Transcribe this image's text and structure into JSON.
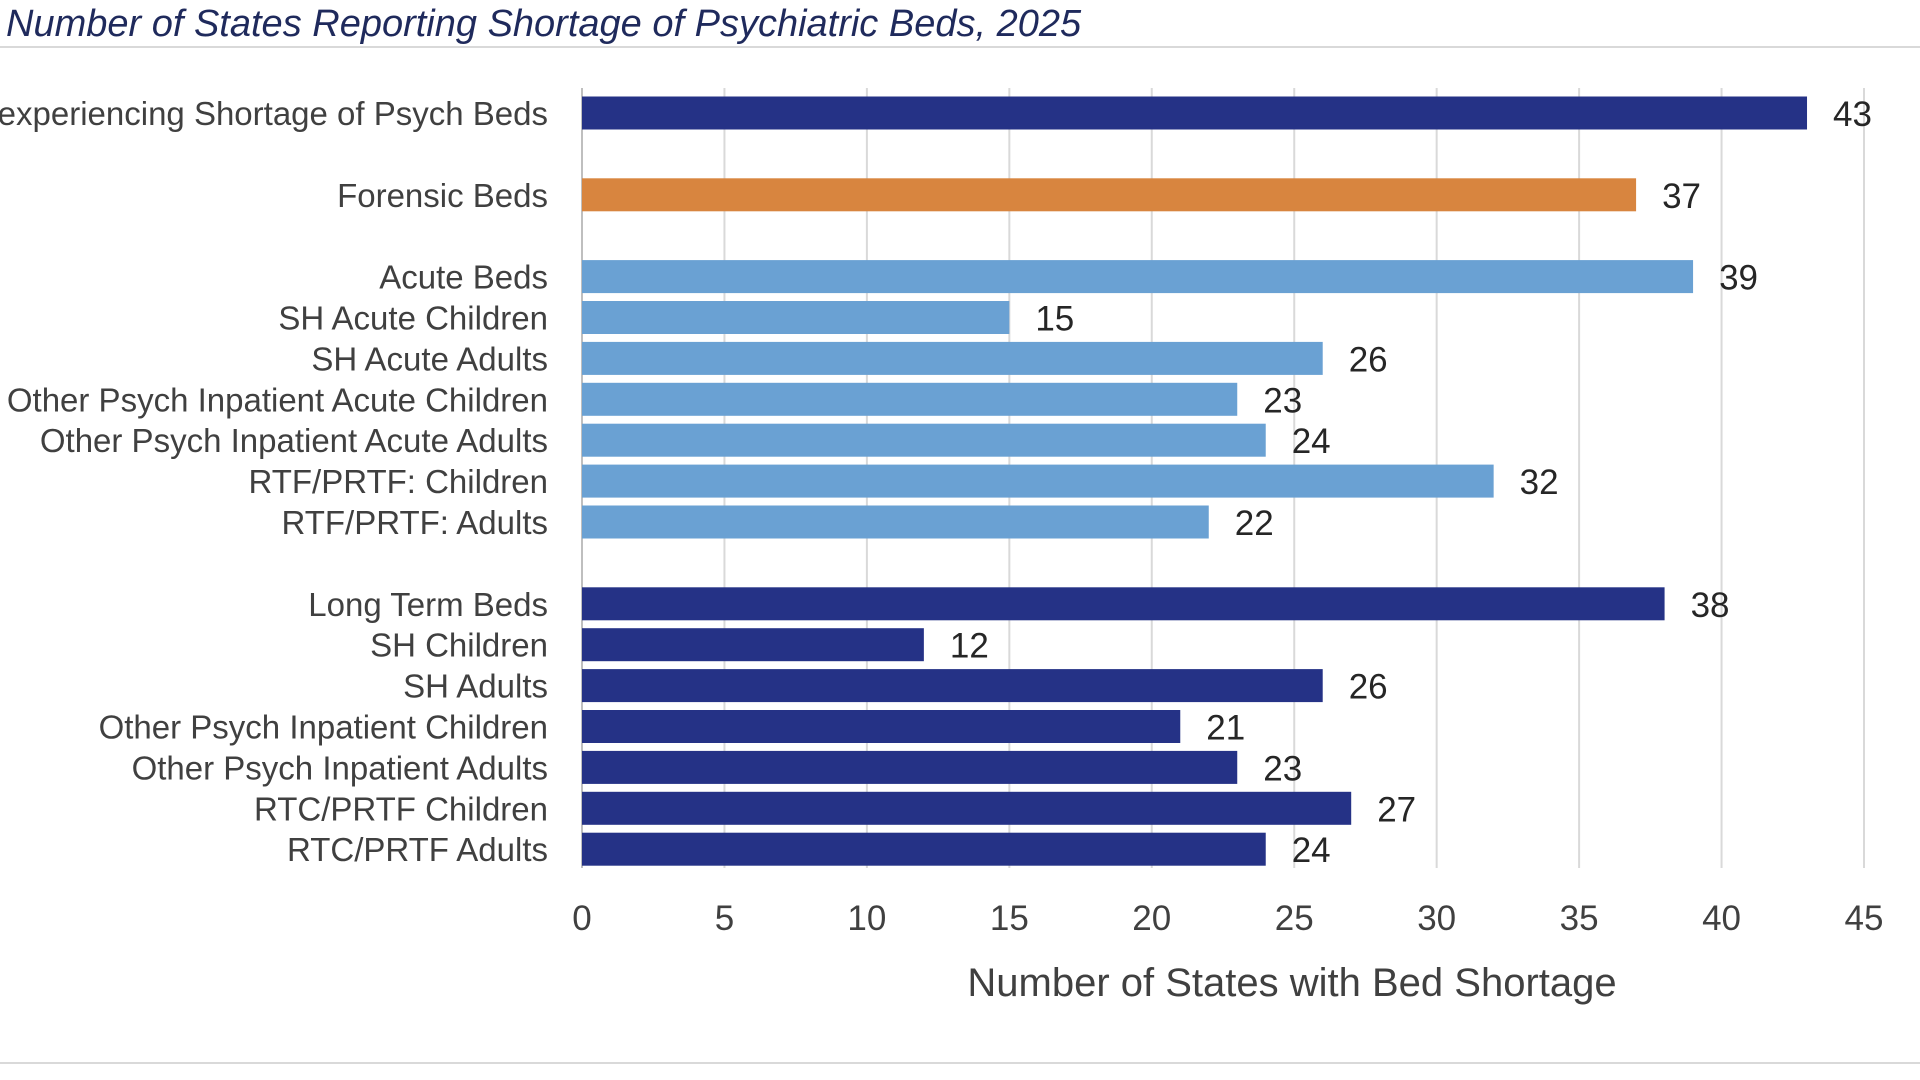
{
  "chart_data": {
    "type": "bar",
    "orientation": "horizontal",
    "title": "Number of States Reporting Shortage of Psychiatric Beds, 2025",
    "xlabel": "Number of States with Bed Shortage",
    "ylabel": "",
    "xlim": [
      0,
      45
    ],
    "xticks": [
      0,
      5,
      10,
      15,
      20,
      25,
      30,
      35,
      40,
      45
    ],
    "grid": "vertical",
    "legend": "none",
    "categories": [
      "experiencing Shortage of Psych Beds",
      "Forensic Beds",
      "Acute Beds",
      "SH Acute Children",
      "SH Acute Adults",
      "Other Psych Inpatient Acute Children",
      "Other Psych Inpatient Acute Adults",
      "RTF/PRTF: Children",
      "RTF/PRTF: Adults",
      "Long Term Beds",
      "SH Children",
      "SH Adults",
      "Other Psych Inpatient Children",
      "Other Psych Inpatient Adults",
      "RTC/PRTF Children",
      "RTC/PRTF Adults"
    ],
    "values": [
      43,
      37,
      39,
      15,
      26,
      23,
      24,
      32,
      22,
      38,
      12,
      26,
      21,
      23,
      27,
      24
    ],
    "groups": [
      0,
      1,
      2,
      2,
      2,
      2,
      2,
      2,
      2,
      3,
      3,
      3,
      3,
      3,
      3,
      3
    ],
    "bar_colors": [
      "#253286",
      "#d8853f",
      "#6aa1d3",
      "#6aa1d3",
      "#6aa1d3",
      "#6aa1d3",
      "#6aa1d3",
      "#6aa1d3",
      "#6aa1d3",
      "#253286",
      "#253286",
      "#253286",
      "#253286",
      "#253286",
      "#253286",
      "#253286"
    ]
  }
}
